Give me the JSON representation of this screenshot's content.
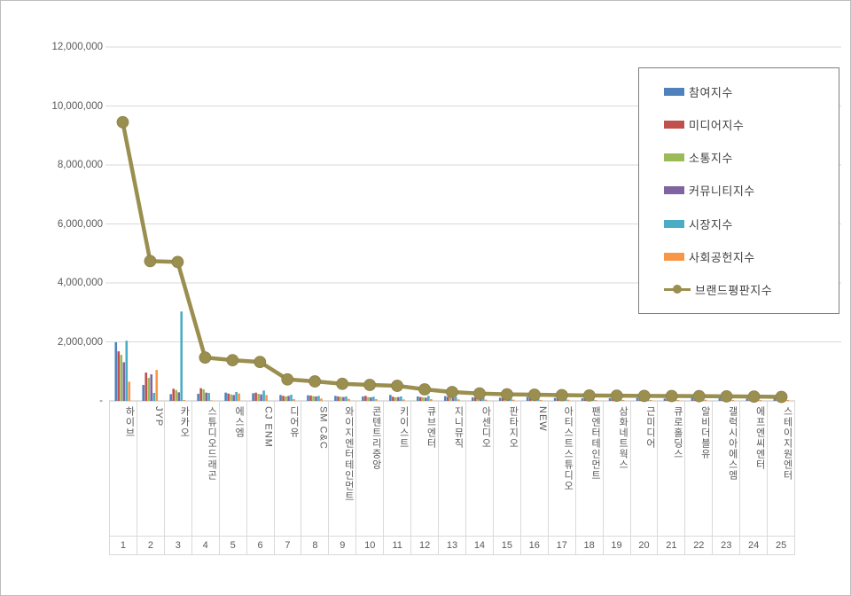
{
  "figure": {
    "background": "#ffffff",
    "border_color": "#bdbdbd",
    "gridline_color": "#d9d9d9",
    "axis_color": "#bfbfbf",
    "text_color": "#595959"
  },
  "y_axis": {
    "tick_labels": [
      "12,000,000",
      "10,000,000",
      "8,000,000",
      "6,000,000",
      "4,000,000",
      "2,000,000",
      "-"
    ],
    "tick_values": [
      12000000,
      10000000,
      8000000,
      6000000,
      4000000,
      2000000,
      0
    ]
  },
  "x_axis": {
    "ranks": [
      "1",
      "2",
      "3",
      "4",
      "5",
      "6",
      "7",
      "8",
      "9",
      "10",
      "11",
      "12",
      "13",
      "14",
      "15",
      "16",
      "17",
      "18",
      "19",
      "20",
      "21",
      "22",
      "23",
      "24",
      "25"
    ]
  },
  "chart_data": {
    "type": "bar+line combo",
    "title": "",
    "xlabel": "",
    "ylabel": "",
    "ylim": [
      0,
      12000000
    ],
    "y_ticks": [
      0,
      2000000,
      4000000,
      6000000,
      8000000,
      10000000,
      12000000
    ],
    "grid": "horizontal gridlines on",
    "legend_position": "top-right overlay box",
    "categories": [
      "하이브",
      "JYP",
      "카카오",
      "스튜디오드래곤",
      "에스엠",
      "CJ ENM",
      "디어유",
      "SM C&C",
      "와이지엔터테인먼트",
      "콘텐트리중앙",
      "키이스트",
      "큐브엔터",
      "지니뮤직",
      "아센디오",
      "판타지오",
      "NEW",
      "아티스트스튜디오",
      "팬엔터테인먼트",
      "삼화네트웍스",
      "근미디어",
      "큐로홀딩스",
      "알비더블유",
      "갤럭시아에스엠",
      "에프엔씨엔터",
      "스테이지원엔터"
    ],
    "ranks": [
      1,
      2,
      3,
      4,
      5,
      6,
      7,
      8,
      9,
      10,
      11,
      12,
      13,
      14,
      15,
      16,
      17,
      18,
      19,
      20,
      21,
      22,
      23,
      24,
      25
    ],
    "series": [
      {
        "name": "참여지수",
        "type": "bar",
        "color": "#4F81BD",
        "values": [
          1990000,
          540000,
          230000,
          240000,
          280000,
          260000,
          200000,
          190000,
          170000,
          150000,
          200000,
          150000,
          160000,
          120000,
          110000,
          140000,
          100000,
          90000,
          90000,
          100000,
          80000,
          110000,
          90000,
          80000,
          90000
        ]
      },
      {
        "name": "미디어지수",
        "type": "bar",
        "color": "#C0504D",
        "values": [
          1680000,
          960000,
          410000,
          430000,
          250000,
          280000,
          170000,
          180000,
          150000,
          170000,
          140000,
          130000,
          140000,
          110000,
          100000,
          110000,
          100000,
          90000,
          80000,
          90000,
          80000,
          90000,
          80000,
          70000,
          80000
        ]
      },
      {
        "name": "소통지수",
        "type": "bar",
        "color": "#9BBB59",
        "values": [
          1560000,
          780000,
          370000,
          390000,
          220000,
          240000,
          150000,
          160000,
          140000,
          130000,
          120000,
          120000,
          110000,
          100000,
          90000,
          90000,
          90000,
          80000,
          70000,
          70000,
          70000,
          80000,
          70000,
          60000,
          70000
        ]
      },
      {
        "name": "커뮤니티지수",
        "type": "bar",
        "color": "#8064A2",
        "values": [
          1310000,
          900000,
          290000,
          280000,
          200000,
          220000,
          170000,
          150000,
          130000,
          120000,
          130000,
          110000,
          100000,
          90000,
          90000,
          100000,
          80000,
          70000,
          70000,
          60000,
          60000,
          70000,
          60000,
          60000,
          60000
        ]
      },
      {
        "name": "시장지수",
        "type": "bar",
        "color": "#4BACC6",
        "values": [
          2040000,
          270000,
          3030000,
          270000,
          300000,
          350000,
          210000,
          170000,
          150000,
          140000,
          150000,
          170000,
          130000,
          110000,
          100000,
          120000,
          90000,
          80000,
          80000,
          70000,
          70000,
          80000,
          90000,
          70000,
          60000
        ]
      },
      {
        "name": "사회공헌지수",
        "type": "bar",
        "color": "#F79646",
        "values": [
          650000,
          1050000,
          30000,
          20000,
          250000,
          200000,
          60000,
          80000,
          70000,
          60000,
          50000,
          60000,
          50000,
          40000,
          40000,
          30000,
          40000,
          30000,
          30000,
          30000,
          30000,
          40000,
          30000,
          30000,
          30000
        ]
      },
      {
        "name": "브랜드평판지수",
        "type": "line",
        "color": "#9A8F4F",
        "values": [
          9450000,
          4740000,
          4710000,
          1470000,
          1380000,
          1320000,
          730000,
          660000,
          580000,
          540000,
          510000,
          390000,
          300000,
          250000,
          220000,
          210000,
          195000,
          185000,
          175000,
          170000,
          165000,
          160000,
          155000,
          145000,
          135000
        ]
      }
    ]
  }
}
